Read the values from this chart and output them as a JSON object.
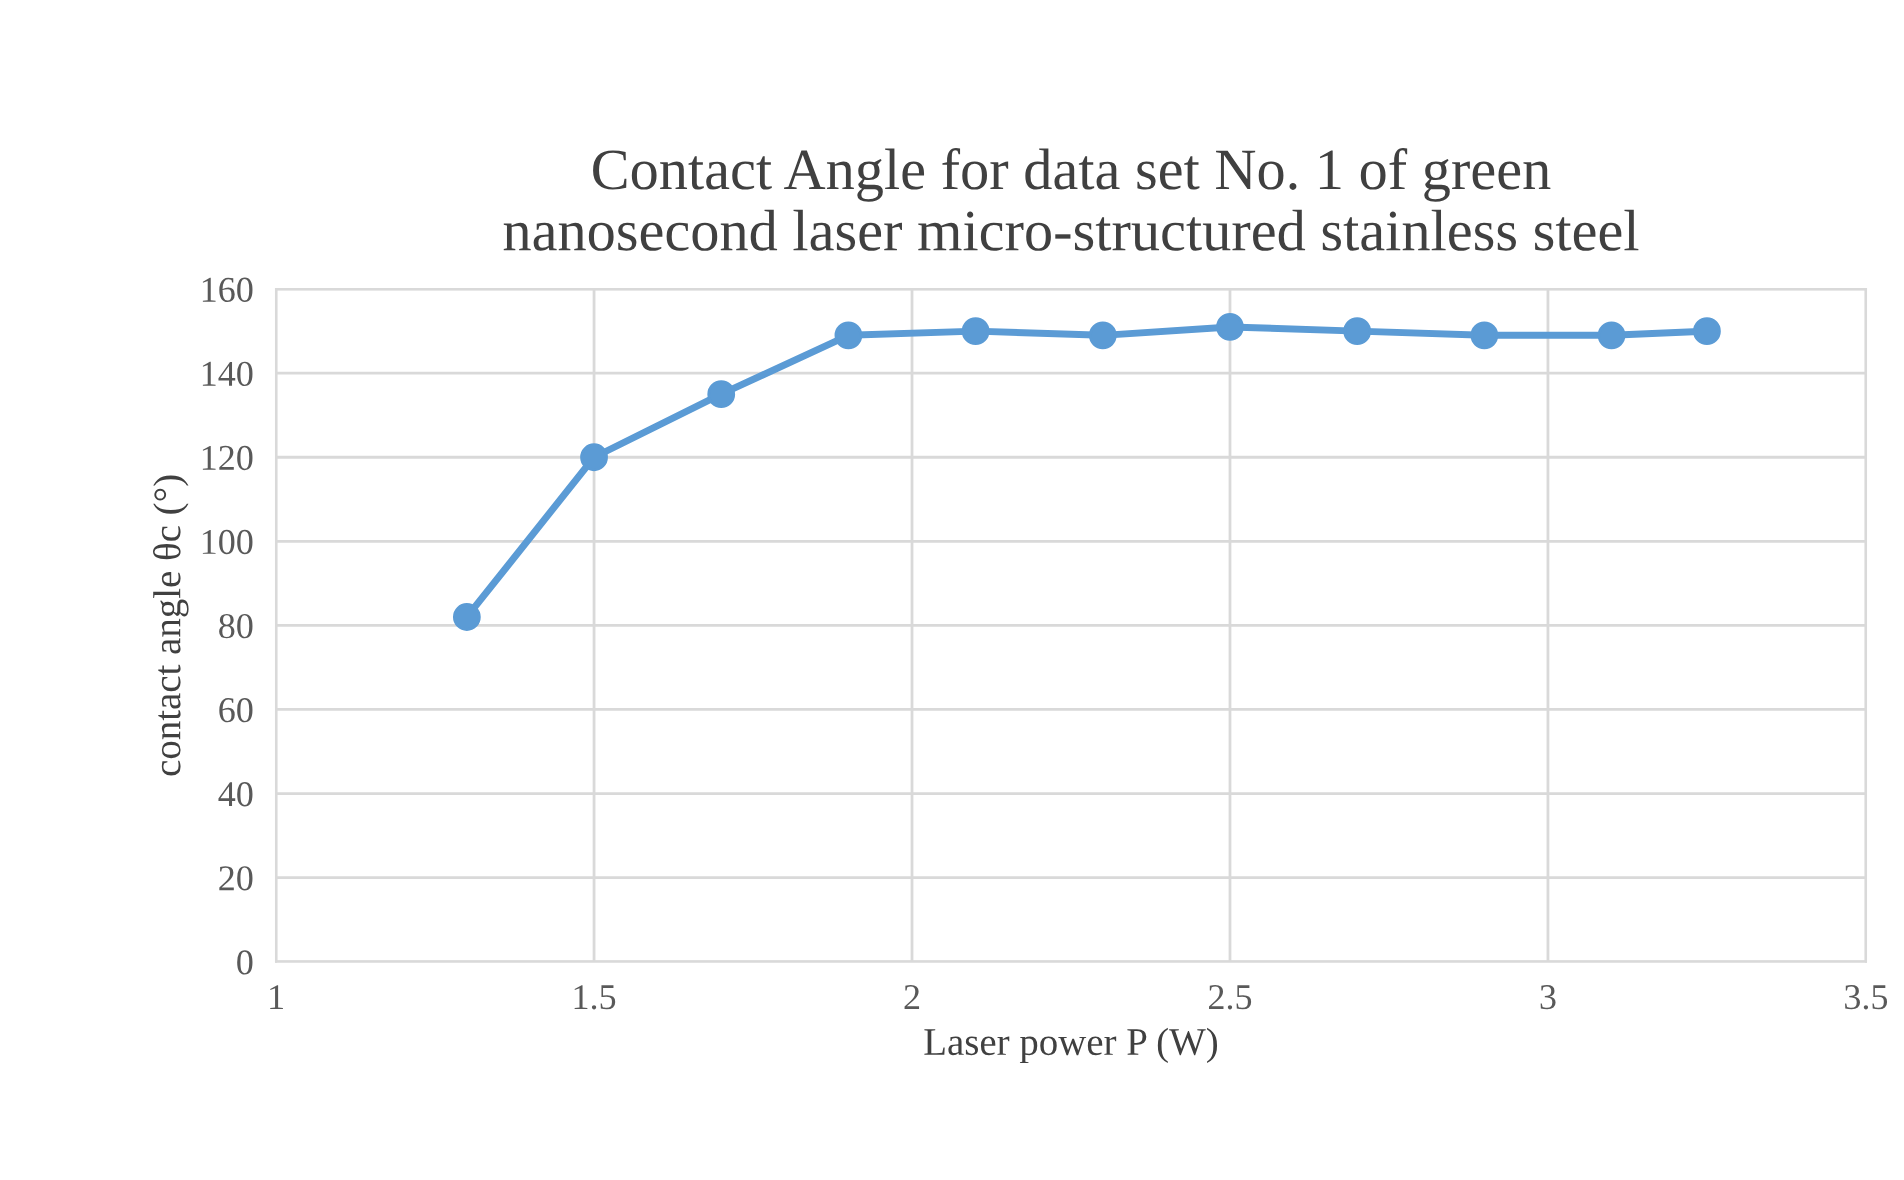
{
  "chart_data": {
    "type": "line",
    "title": "Contact Angle for data set No. 1 of green\nnanosecond laser micro-structured stainless steel",
    "xlabel": "Laser power P (W)",
    "ylabel": "contact angle θc (°)",
    "x": [
      1.3,
      1.5,
      1.7,
      1.9,
      2.1,
      2.3,
      2.5,
      2.7,
      2.9,
      3.1,
      3.25
    ],
    "series": [
      {
        "color": "#5b9bd5",
        "values": [
          82,
          120,
          135,
          149,
          150,
          149,
          151,
          150,
          149,
          149,
          150
        ]
      }
    ],
    "xlim": [
      1,
      3.5
    ],
    "xticks": [
      1,
      1.5,
      2,
      2.5,
      3,
      3.5
    ],
    "ylim": [
      0,
      160
    ],
    "yticks": [
      0,
      20,
      40,
      60,
      80,
      100,
      120,
      140,
      160
    ],
    "grid": true,
    "marker": "circle",
    "line_style": "solid",
    "legend": false
  }
}
